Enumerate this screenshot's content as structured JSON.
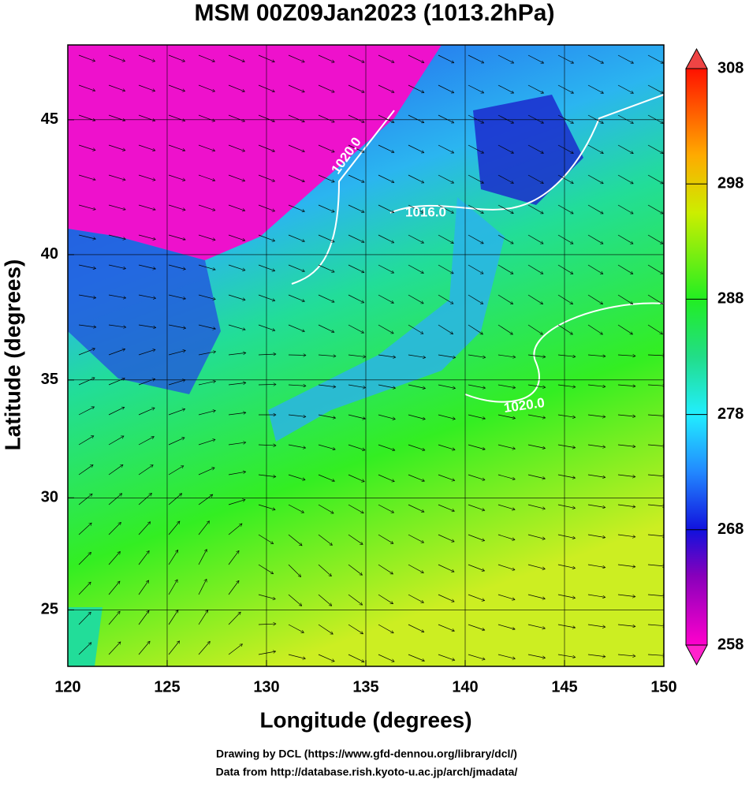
{
  "title": "MSM 00Z09Jan2023 (1013.2hPa)",
  "x_axis": {
    "label": "Longitude (degrees)",
    "lim": [
      120,
      150
    ],
    "ticks": [
      120,
      125,
      130,
      135,
      140,
      145,
      150
    ]
  },
  "y_axis": {
    "label": "Latitude  (degrees)",
    "lim": [
      22.4,
      47.6
    ],
    "ticks": [
      25,
      30,
      35,
      40,
      45
    ],
    "projection": "mercator"
  },
  "colorbar": {
    "lim": [
      258,
      308
    ],
    "ticks": [
      258,
      268,
      278,
      288,
      298,
      308
    ]
  },
  "contour_labels": [
    "1020.0",
    "1016.0",
    "1020.0"
  ],
  "credits": [
    "Drawing by DCL (https://www.gfd-dennou.org/library/dcl/)",
    "Data from http://database.rish.kyoto-u.ac.jp/arch/jmadata/"
  ]
}
